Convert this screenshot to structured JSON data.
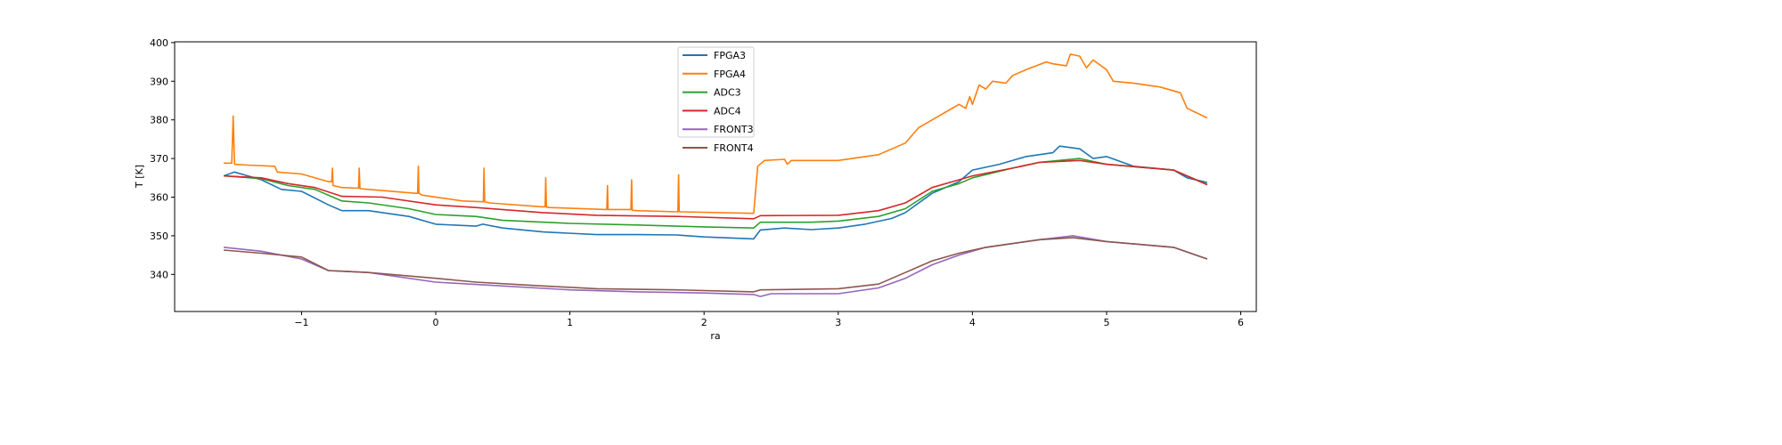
{
  "chart_data": {
    "type": "line",
    "title": "",
    "xlabel": "ra",
    "ylabel": "T [K]",
    "xlim": [
      -1.946,
      6.116
    ],
    "ylim": [
      330.4,
      400.2
    ],
    "xticks": [
      -1,
      0,
      1,
      2,
      3,
      4,
      5,
      6
    ],
    "xtick_labels": [
      "−1",
      "0",
      "1",
      "2",
      "3",
      "4",
      "5",
      "6"
    ],
    "yticks": [
      340,
      350,
      360,
      370,
      380,
      390,
      400
    ],
    "ytick_labels": [
      "340",
      "350",
      "360",
      "370",
      "380",
      "390",
      "400"
    ],
    "grid": false,
    "legend_position": "top-center",
    "series": [
      {
        "name": "FPGA3",
        "color": "#1f77b4",
        "x": [
          -1.58,
          -1.5,
          -1.3,
          -1.15,
          -1.0,
          -0.8,
          -0.7,
          -0.5,
          -0.2,
          0,
          0.3,
          0.35,
          0.5,
          0.8,
          1.2,
          1.5,
          1.8,
          2.0,
          2.37,
          2.42,
          2.6,
          2.8,
          3.0,
          3.2,
          3.4,
          3.5,
          3.7,
          3.9,
          4.0,
          4.2,
          4.4,
          4.6,
          4.65,
          4.8,
          4.9,
          5.0,
          5.2,
          5.5,
          5.6,
          5.75
        ],
        "y": [
          365.5,
          366.5,
          364.5,
          362,
          361.5,
          358,
          356.5,
          356.5,
          355,
          353,
          352.5,
          353,
          352,
          351,
          350.3,
          350.3,
          350.2,
          349.7,
          349.2,
          351.5,
          352,
          351.6,
          352,
          353,
          354.5,
          356,
          361,
          364,
          367,
          368.5,
          370.5,
          371.5,
          373.2,
          372.5,
          370,
          370.5,
          368,
          367,
          365,
          363.8
        ]
      },
      {
        "name": "FPGA4",
        "color": "#ff7f0e",
        "x": [
          -1.58,
          -1.52,
          -1.51,
          -1.5,
          -1.4,
          -1.2,
          -1.18,
          -1.0,
          -0.8,
          -0.775,
          -0.77,
          -0.765,
          -0.7,
          -0.575,
          -0.57,
          -0.565,
          -0.5,
          -0.15,
          -0.135,
          -0.13,
          -0.125,
          -0.1,
          0.2,
          0.35,
          0.355,
          0.36,
          0.365,
          0.4,
          0.8,
          0.815,
          0.82,
          0.825,
          0.85,
          1.27,
          1.275,
          1.28,
          1.285,
          1.3,
          1.45,
          1.455,
          1.46,
          1.465,
          1.5,
          1.8,
          1.805,
          1.81,
          1.815,
          1.83,
          2.37,
          2.4,
          2.45,
          2.6,
          2.62,
          2.65,
          3.0,
          3.3,
          3.5,
          3.6,
          3.8,
          3.9,
          3.95,
          3.98,
          4.0,
          4.05,
          4.1,
          4.15,
          4.25,
          4.3,
          4.4,
          4.55,
          4.6,
          4.7,
          4.73,
          4.8,
          4.85,
          4.9,
          5.0,
          5.05,
          5.2,
          5.4,
          5.55,
          5.6,
          5.75
        ],
        "y": [
          368.8,
          368.8,
          381,
          368.5,
          368.3,
          368,
          366.5,
          366,
          364,
          364,
          367.5,
          363,
          362.5,
          362.3,
          367.5,
          362.2,
          362,
          361,
          361,
          368,
          361,
          360.5,
          359,
          358.8,
          358.8,
          367.5,
          358.8,
          358.5,
          357.5,
          357.5,
          365,
          357.4,
          357.3,
          356.8,
          356.8,
          363,
          356.8,
          356.8,
          356.8,
          356.8,
          364.5,
          356.6,
          356.5,
          356.2,
          356.2,
          365.8,
          356.3,
          356.2,
          355.8,
          368,
          369.5,
          369.8,
          368.5,
          369.5,
          369.5,
          371,
          374,
          378,
          382,
          384,
          383,
          386,
          384,
          389,
          388,
          390,
          389.5,
          391.5,
          393,
          395,
          394.5,
          394,
          397,
          396.5,
          393.5,
          395.5,
          393,
          390,
          389.5,
          388.5,
          387,
          383,
          380.5
        ]
      },
      {
        "name": "ADC3",
        "color": "#2ca02c",
        "x": [
          -1.58,
          -1.3,
          -1.1,
          -0.9,
          -0.7,
          -0.5,
          -0.2,
          0,
          0.3,
          0.5,
          1.0,
          1.5,
          2.0,
          2.37,
          2.42,
          2.8,
          3.0,
          3.3,
          3.5,
          3.7,
          3.9,
          4.0,
          4.3,
          4.5,
          4.8,
          5.0,
          5.5,
          5.75
        ],
        "y": [
          365.5,
          364.8,
          363,
          362,
          359,
          358.5,
          357,
          355.5,
          355,
          354,
          353.2,
          352.8,
          352.3,
          352,
          353.5,
          353.5,
          353.8,
          355,
          357,
          361.5,
          363.5,
          365,
          367.5,
          369,
          370,
          368.5,
          367,
          363.3
        ]
      },
      {
        "name": "ADC4",
        "color": "#d62728",
        "x": [
          -1.58,
          -1.3,
          -1.1,
          -0.9,
          -0.7,
          -0.4,
          0,
          0.3,
          0.8,
          1.2,
          1.8,
          2.37,
          2.42,
          3.0,
          3.3,
          3.5,
          3.7,
          3.9,
          4.0,
          4.3,
          4.5,
          4.8,
          5.0,
          5.5,
          5.75
        ],
        "y": [
          365.5,
          365,
          363.5,
          362.5,
          360.2,
          360,
          358,
          357.3,
          356,
          355.3,
          355,
          354.4,
          355.2,
          355.3,
          356.5,
          358.5,
          362.5,
          364.5,
          365.5,
          367.5,
          369,
          369.5,
          368.5,
          367,
          363.2
        ]
      },
      {
        "name": "FRONT3",
        "color": "#9467bd",
        "x": [
          -1.58,
          -1.3,
          -1.0,
          -0.8,
          -0.5,
          0,
          0.5,
          1.0,
          1.5,
          2.0,
          2.37,
          2.42,
          2.5,
          3.0,
          3.3,
          3.5,
          3.7,
          3.9,
          4.1,
          4.3,
          4.5,
          4.75,
          5.0,
          5.5,
          5.75
        ],
        "y": [
          347,
          346,
          344,
          341,
          340.5,
          338,
          337,
          336,
          335.5,
          335.2,
          334.8,
          334.3,
          335,
          335,
          336.5,
          339,
          342.5,
          345,
          347,
          348,
          349,
          350,
          348.5,
          347,
          344
        ]
      },
      {
        "name": "FRONT4",
        "color": "#8c564b",
        "x": [
          -1.58,
          -1.3,
          -1.0,
          -0.8,
          -0.5,
          0,
          0.3,
          0.8,
          1.2,
          1.8,
          2.37,
          2.42,
          3.0,
          3.3,
          3.5,
          3.7,
          3.9,
          4.1,
          4.5,
          4.75,
          5.0,
          5.5,
          5.75
        ],
        "y": [
          346.3,
          345.5,
          344.5,
          341,
          340.5,
          339,
          338,
          337,
          336.3,
          336,
          335.5,
          336,
          336.3,
          337.5,
          340.5,
          343.5,
          345.5,
          347,
          349,
          349.5,
          348.5,
          347,
          344
        ]
      }
    ]
  }
}
